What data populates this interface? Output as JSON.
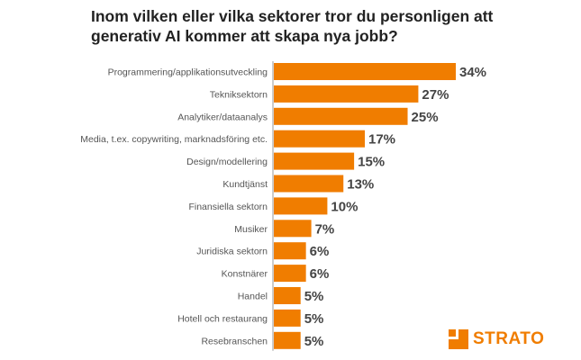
{
  "chart_data": {
    "type": "bar",
    "orientation": "horizontal",
    "title": "Inom vilken eller vilka sektorer tror du personligen att generativ AI kommer att skapa nya jobb?",
    "categories": [
      "Programmering/applikationsutveckling",
      "Tekniksektorn",
      "Analytiker/dataanalys",
      "Media, t.ex. copywriting, marknadsföring etc.",
      "Design/modellering",
      "Kundtjänst",
      "Finansiella sektorn",
      "Musiker",
      "Juridiska sektorn",
      "Konstnärer",
      "Handel",
      "Hotell och restaurang",
      "Resebranschen"
    ],
    "values": [
      34,
      27,
      25,
      17,
      15,
      13,
      10,
      7,
      6,
      6,
      5,
      5,
      5
    ],
    "value_labels": [
      "34%",
      "27%",
      "25%",
      "17%",
      "15%",
      "13%",
      "10%",
      "7%",
      "6%",
      "6%",
      "5%",
      "5%",
      "5%"
    ],
    "unit": "%",
    "xlim": [
      0,
      34
    ],
    "grid": false,
    "legend": "none",
    "bar_color": "#f07d00"
  },
  "brand": {
    "name": "STRATO",
    "logo_icon": "strato-logo-icon",
    "color": "#f07d00"
  }
}
